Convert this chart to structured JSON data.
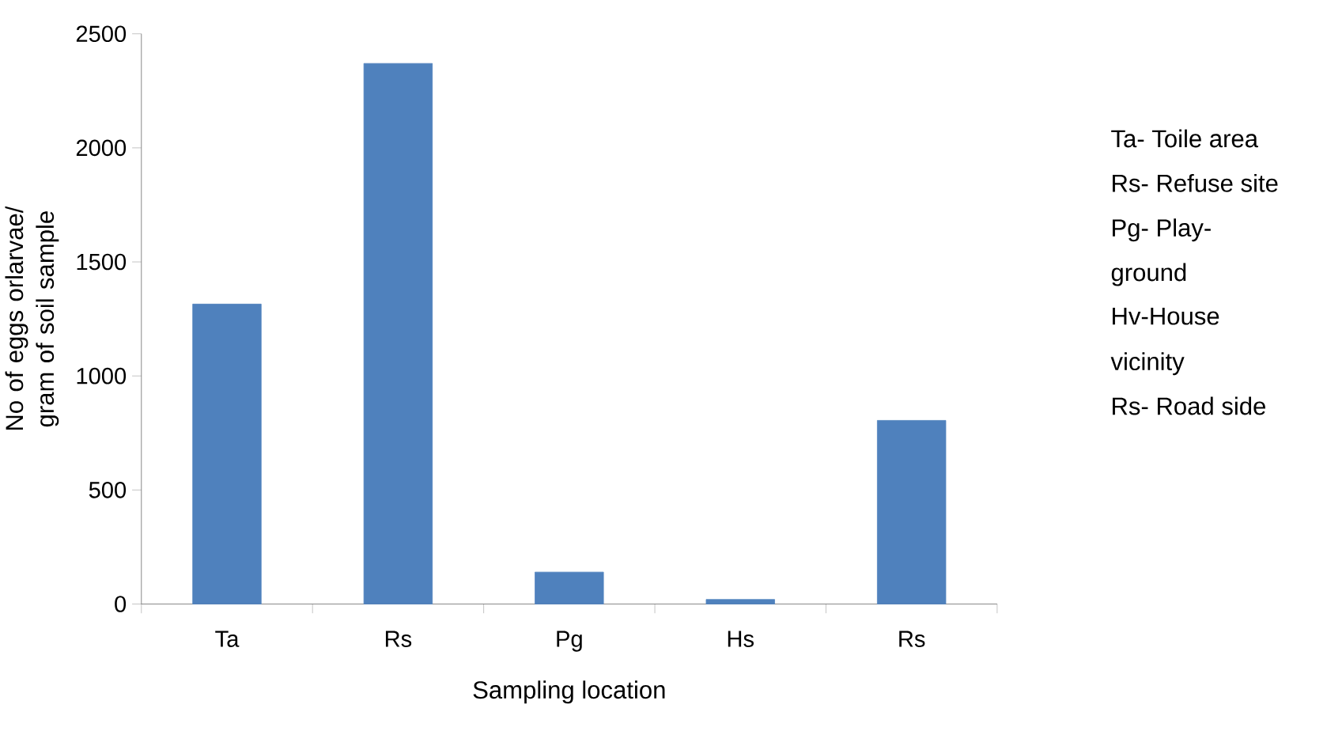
{
  "chart_data": {
    "type": "bar",
    "xlabel": "Sampling location",
    "ylabel": "No of eggs orlarvae/ gram of soil sample",
    "categories": [
      "Ta",
      "Rs",
      "Pg",
      "Hs",
      "Rs"
    ],
    "values": [
      1315,
      2370,
      140,
      20,
      805
    ],
    "color": "#4f81bd",
    "ylim": [
      0,
      2500
    ],
    "yticks": [
      0,
      500,
      1000,
      1500,
      2000,
      2500
    ],
    "annotations": [
      "Ta- Toile area",
      "Rs- Refuse site",
      "Pg- Play-",
      "ground",
      "Hv-House",
      "vicinity",
      "Rs-  Road side"
    ]
  }
}
